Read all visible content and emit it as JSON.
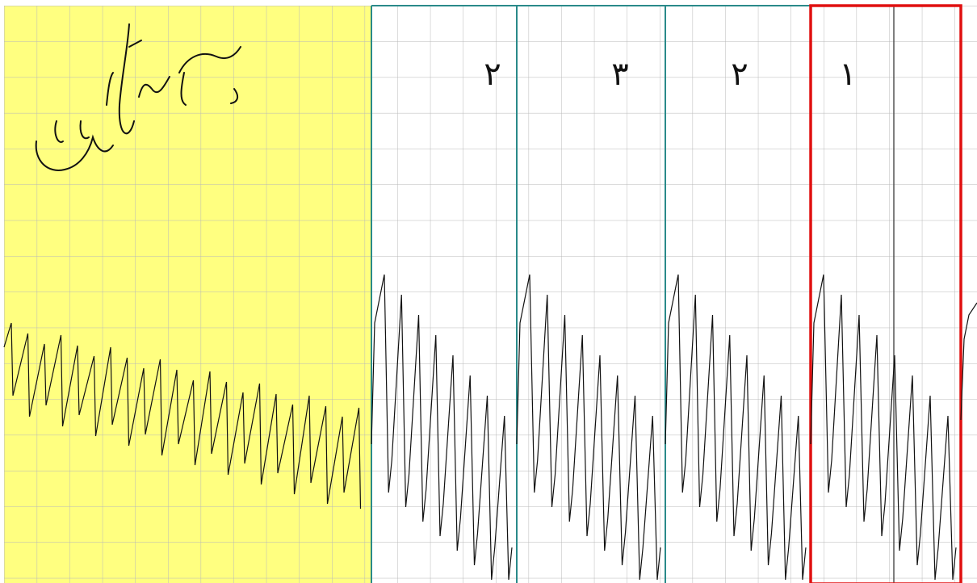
{
  "panels": {
    "labels": [
      "۲",
      "۳",
      "۲",
      "۱"
    ]
  }
}
